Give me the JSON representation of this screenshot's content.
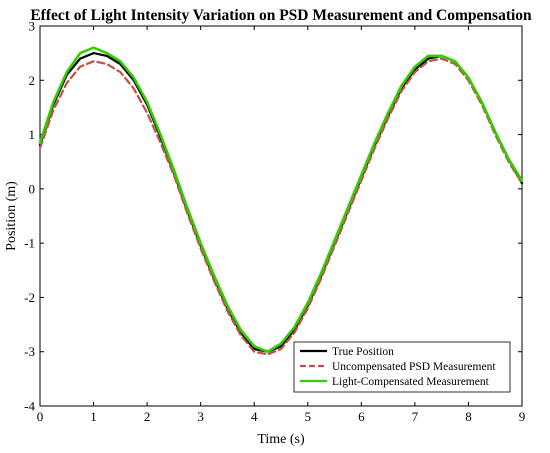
{
  "chart_data": {
    "type": "line",
    "title": "Effect of Light Intensity Variation on PSD Measurement and Compensation",
    "xlabel": "Time (s)",
    "ylabel": "Position (m)",
    "xlim": [
      0,
      9
    ],
    "ylim": [
      -4,
      3
    ],
    "xticks": [
      0,
      1,
      2,
      3,
      4,
      5,
      6,
      7,
      8,
      9
    ],
    "yticks": [
      -4,
      -3,
      -2,
      -1,
      0,
      1,
      2,
      3
    ],
    "grid": false,
    "legend_position": "bottom-right",
    "series": [
      {
        "name": "True Position",
        "color": "#000000",
        "style": "solid",
        "x": [
          0,
          0.25,
          0.5,
          0.75,
          1.0,
          1.25,
          1.5,
          1.75,
          2.0,
          2.25,
          2.5,
          2.75,
          3.0,
          3.25,
          3.5,
          3.75,
          4.0,
          4.25,
          4.5,
          4.75,
          5.0,
          5.25,
          5.5,
          5.75,
          6.0,
          6.25,
          6.5,
          6.75,
          7.0,
          7.25,
          7.5,
          7.75,
          8.0,
          8.25,
          8.5,
          8.75,
          9.0
        ],
        "y": [
          0.8,
          1.55,
          2.1,
          2.4,
          2.5,
          2.45,
          2.3,
          2.0,
          1.55,
          0.95,
          0.3,
          -0.4,
          -1.05,
          -1.65,
          -2.2,
          -2.65,
          -2.95,
          -3.0,
          -2.9,
          -2.6,
          -2.15,
          -1.6,
          -1.0,
          -0.4,
          0.2,
          0.8,
          1.35,
          1.85,
          2.2,
          2.4,
          2.45,
          2.35,
          2.05,
          1.6,
          1.05,
          0.55,
          0.1
        ]
      },
      {
        "name": "Uncompensated PSD Measurement",
        "color": "#c0504d",
        "style": "dashed",
        "x": [
          0,
          0.25,
          0.5,
          0.75,
          1.0,
          1.25,
          1.5,
          1.75,
          2.0,
          2.25,
          2.5,
          2.75,
          3.0,
          3.25,
          3.5,
          3.75,
          4.0,
          4.25,
          4.5,
          4.75,
          5.0,
          5.25,
          5.5,
          5.75,
          6.0,
          6.25,
          6.5,
          6.75,
          7.0,
          7.25,
          7.5,
          7.75,
          8.0,
          8.25,
          8.5,
          8.75,
          9.0
        ],
        "y": [
          0.75,
          1.45,
          1.95,
          2.25,
          2.35,
          2.3,
          2.15,
          1.85,
          1.4,
          0.85,
          0.25,
          -0.45,
          -1.1,
          -1.7,
          -2.25,
          -2.7,
          -3.0,
          -3.05,
          -2.95,
          -2.65,
          -2.2,
          -1.65,
          -1.05,
          -0.45,
          0.15,
          0.75,
          1.3,
          1.8,
          2.15,
          2.35,
          2.4,
          2.3,
          2.0,
          1.55,
          1.0,
          0.5,
          0.1
        ]
      },
      {
        "name": "Light-Compensated Measurement",
        "color": "#33cc00",
        "style": "solid",
        "x": [
          0,
          0.25,
          0.5,
          0.75,
          1.0,
          1.25,
          1.5,
          1.75,
          2.0,
          2.25,
          2.5,
          2.75,
          3.0,
          3.25,
          3.5,
          3.75,
          4.0,
          4.25,
          4.5,
          4.75,
          5.0,
          5.25,
          5.5,
          5.75,
          6.0,
          6.25,
          6.5,
          6.75,
          7.0,
          7.25,
          7.5,
          7.75,
          8.0,
          8.25,
          8.5,
          8.75,
          9.0
        ],
        "y": [
          0.85,
          1.6,
          2.15,
          2.5,
          2.6,
          2.5,
          2.35,
          2.05,
          1.6,
          1.0,
          0.35,
          -0.35,
          -1.0,
          -1.6,
          -2.15,
          -2.6,
          -2.9,
          -3.0,
          -2.85,
          -2.55,
          -2.1,
          -1.55,
          -0.95,
          -0.35,
          0.25,
          0.85,
          1.4,
          1.9,
          2.25,
          2.45,
          2.45,
          2.35,
          2.05,
          1.6,
          1.05,
          0.55,
          0.15
        ]
      }
    ]
  }
}
